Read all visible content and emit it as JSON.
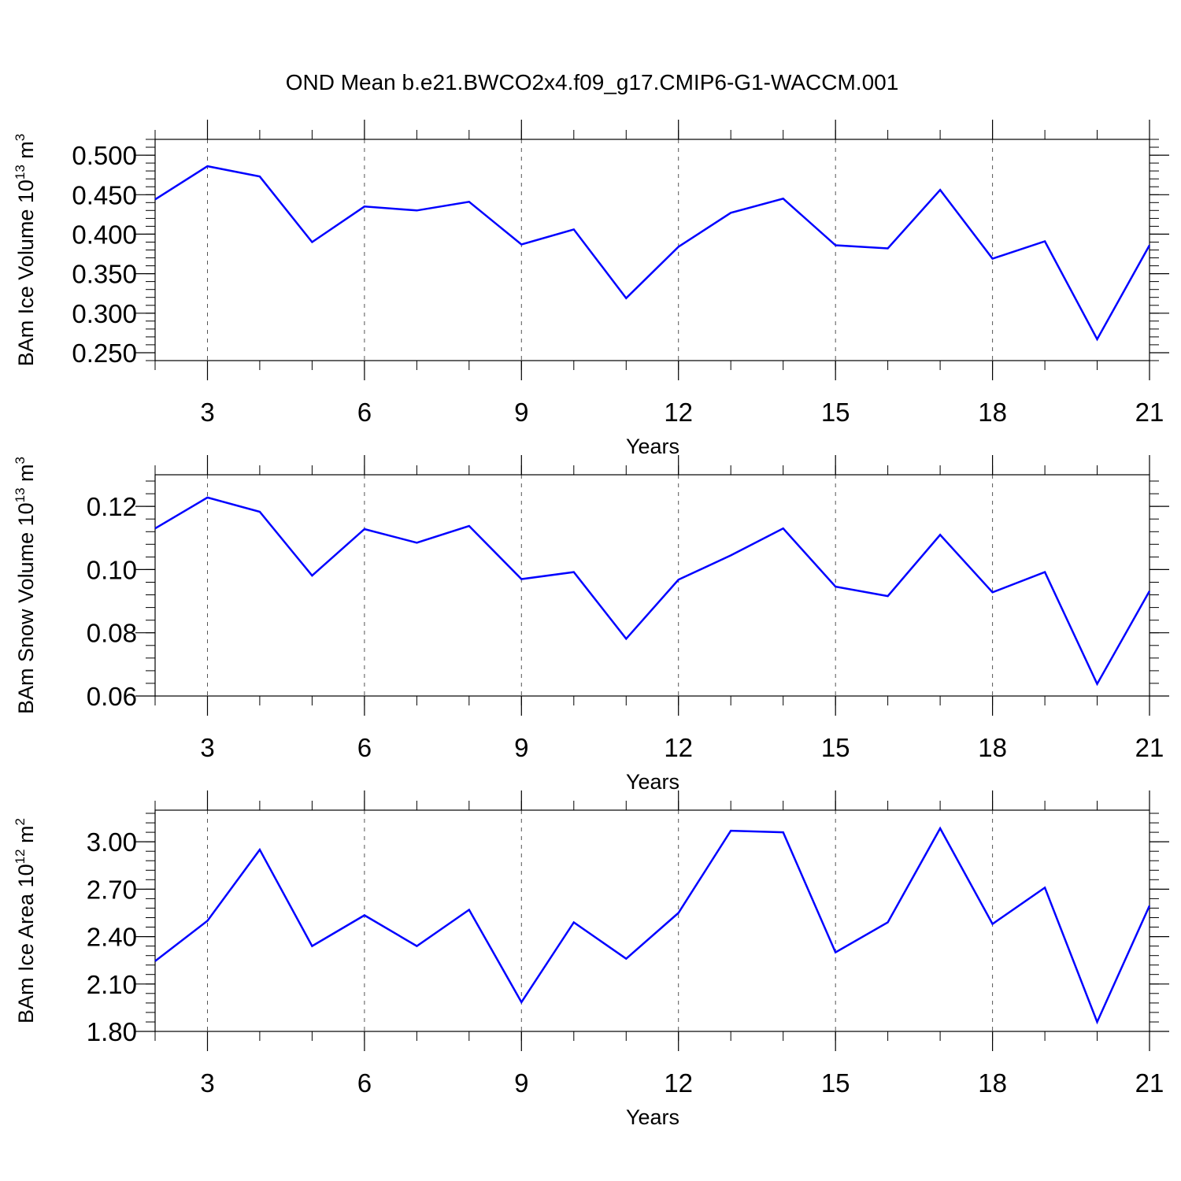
{
  "title": "OND Mean b.e21.BWCO2x4.f09_g17.CMIP6-G1-WACCM.001",
  "line_color": "#0000ff",
  "chart_data": [
    {
      "type": "line",
      "ylabel": {
        "text": "BAm Ice Volume 10",
        "exponent": "13",
        "unit_text": " m",
        "unit_exponent": "3"
      },
      "xlabel": "Years",
      "xlim": [
        2,
        21
      ],
      "ylim": [
        0.24,
        0.52
      ],
      "xticks": [
        3,
        6,
        9,
        12,
        15,
        18,
        21
      ],
      "xtick_labels": [
        "3",
        "6",
        "9",
        "12",
        "15",
        "18",
        "21"
      ],
      "yticks": [
        0.25,
        0.3,
        0.35,
        0.4,
        0.45,
        0.5
      ],
      "ytick_labels": [
        "0.250",
        "0.300",
        "0.350",
        "0.400",
        "0.450",
        "0.500"
      ],
      "grid": "vertical dashed at major x ticks",
      "x": [
        2,
        3,
        4,
        5,
        6,
        7,
        8,
        9,
        10,
        11,
        12,
        13,
        14,
        15,
        16,
        17,
        18,
        19,
        20,
        21
      ],
      "values": [
        0.444,
        0.486,
        0.473,
        0.39,
        0.435,
        0.43,
        0.441,
        0.387,
        0.406,
        0.319,
        0.384,
        0.427,
        0.445,
        0.386,
        0.382,
        0.456,
        0.369,
        0.391,
        0.267,
        0.386
      ]
    },
    {
      "type": "line",
      "ylabel": {
        "text": "BAm Snow Volume 10",
        "exponent": "13",
        "unit_text": " m",
        "unit_exponent": "3"
      },
      "xlabel": "Years",
      "xlim": [
        2,
        21
      ],
      "ylim": [
        0.06,
        0.13
      ],
      "xticks": [
        3,
        6,
        9,
        12,
        15,
        18,
        21
      ],
      "xtick_labels": [
        "3",
        "6",
        "9",
        "12",
        "15",
        "18",
        "21"
      ],
      "yticks": [
        0.06,
        0.08,
        0.1,
        0.12
      ],
      "ytick_labels": [
        "0.06",
        "0.08",
        "0.10",
        "0.12"
      ],
      "grid": "vertical dashed at major x ticks",
      "x": [
        2,
        3,
        4,
        5,
        6,
        7,
        8,
        9,
        10,
        11,
        12,
        13,
        14,
        15,
        16,
        17,
        18,
        19,
        20,
        21
      ],
      "values": [
        0.113,
        0.1228,
        0.1183,
        0.0981,
        0.1128,
        0.1085,
        0.1138,
        0.097,
        0.0992,
        0.0781,
        0.0968,
        0.1045,
        0.113,
        0.0946,
        0.0916,
        0.111,
        0.0928,
        0.0992,
        0.0638,
        0.0932
      ]
    },
    {
      "type": "line",
      "ylabel": {
        "text": "BAm Ice Area 10",
        "exponent": "12",
        "unit_text": " m",
        "unit_exponent": "2"
      },
      "xlabel": "Years",
      "xlim": [
        2,
        21
      ],
      "ylim": [
        1.8,
        3.2
      ],
      "xticks": [
        3,
        6,
        9,
        12,
        15,
        18,
        21
      ],
      "xtick_labels": [
        "3",
        "6",
        "9",
        "12",
        "15",
        "18",
        "21"
      ],
      "yticks": [
        1.8,
        2.1,
        2.4,
        2.7,
        3.0
      ],
      "ytick_labels": [
        "1.80",
        "2.10",
        "2.40",
        "2.70",
        "3.00"
      ],
      "grid": "vertical dashed at major x ticks",
      "x": [
        2,
        3,
        4,
        5,
        6,
        7,
        8,
        9,
        10,
        11,
        12,
        13,
        14,
        15,
        16,
        17,
        18,
        19,
        20,
        21
      ],
      "values": [
        2.245,
        2.5,
        2.95,
        2.34,
        2.535,
        2.34,
        2.57,
        1.985,
        2.49,
        2.26,
        2.55,
        3.07,
        3.06,
        2.3,
        2.49,
        3.085,
        2.48,
        2.71,
        1.86,
        2.595
      ]
    }
  ]
}
